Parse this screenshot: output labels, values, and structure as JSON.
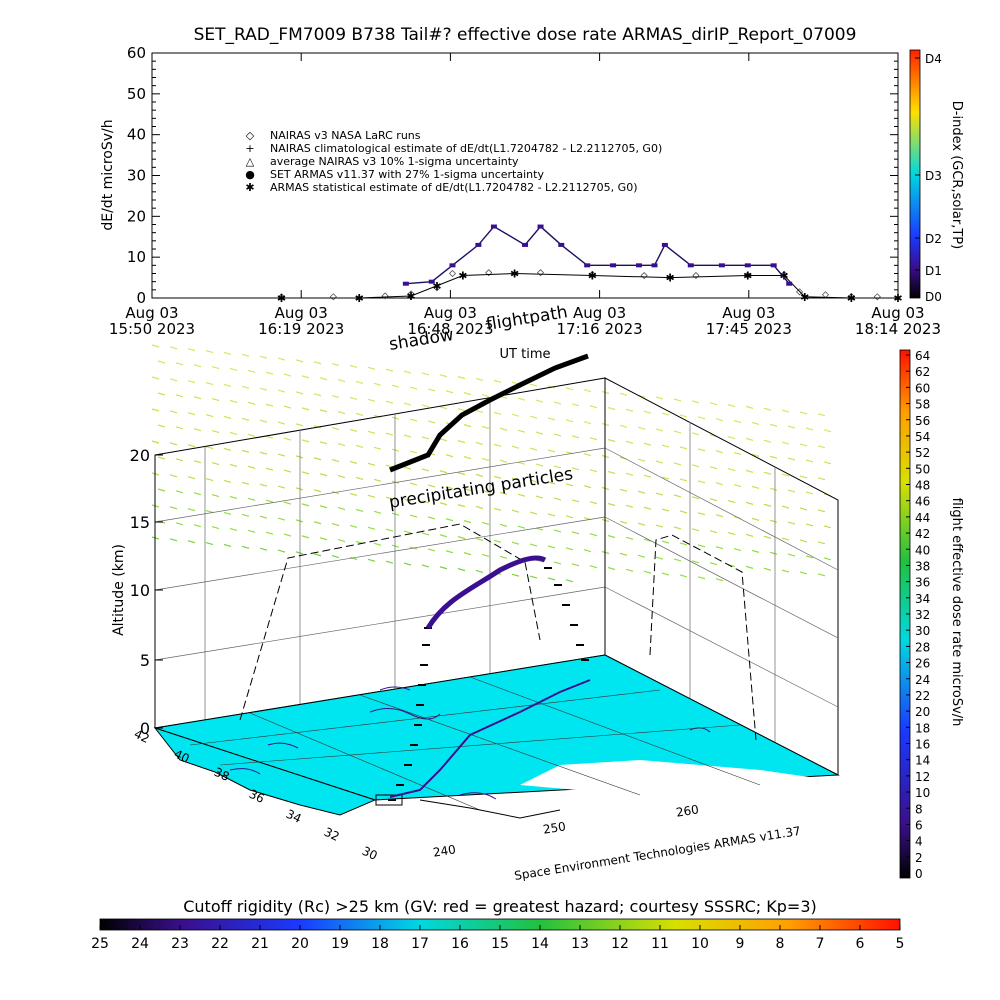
{
  "title": "SET_RAD_FM7009  B738 Tail#? effective dose rate ARMAS_dirIP_Report_07009",
  "top_chart": {
    "ylabel": "dE/dt microSv/h",
    "xlabel": "UT time",
    "yticks": [
      "0",
      "10",
      "20",
      "30",
      "40",
      "50",
      "60"
    ],
    "xticks": [
      {
        "date": "Aug 03",
        "time": "15:50 2023"
      },
      {
        "date": "Aug 03",
        "time": "16:19 2023"
      },
      {
        "date": "Aug 03",
        "time": "16:48 2023"
      },
      {
        "date": "Aug 03",
        "time": "17:16 2023"
      },
      {
        "date": "Aug 03",
        "time": "17:45 2023"
      },
      {
        "date": "Aug 03",
        "time": "18:14 2023"
      }
    ],
    "legend": [
      {
        "symbol": "◇",
        "text": "NAIRAS v3 NASA LaRC runs"
      },
      {
        "symbol": "+",
        "text": "NAIRAS climatological estimate of dE/dt(L1.7204782 - L2.2112705, G0)"
      },
      {
        "symbol": "△",
        "text": "average NAIRAS v3 10% 1-sigma uncertainty"
      },
      {
        "symbol": "●",
        "text": "SET ARMAS v11.37 with 27% 1-sigma uncertainty"
      },
      {
        "symbol": "✱",
        "text": "ARMAS statistical estimate of dE/dt(L1.7204782 - L2.2112705, G0)"
      }
    ],
    "colorbar_label": "D-index (GCR,solar,TP)",
    "colorbar_ticks": [
      "D4",
      "D3",
      "D2",
      "D1",
      "D0"
    ]
  },
  "main_chart": {
    "zlabel": "Altitude (km)",
    "zticks": [
      "0",
      "5",
      "10",
      "15",
      "20"
    ],
    "lat_ticks": [
      "42",
      "40",
      "38",
      "36",
      "34",
      "32",
      "30"
    ],
    "lon_ticks": [
      "240",
      "250",
      "260"
    ],
    "annotation_shadow": "shadow",
    "annotation_flightpath": "flightpath",
    "annotation_particles": "precipitating particles",
    "credit": "Space Environment Technologies ARMAS v11.37",
    "colorbar_label": "flight effective dose rate microSv/h",
    "colorbar_ticks": [
      "64",
      "62",
      "60",
      "58",
      "56",
      "54",
      "52",
      "50",
      "48",
      "46",
      "44",
      "42",
      "40",
      "38",
      "36",
      "34",
      "32",
      "30",
      "28",
      "26",
      "24",
      "22",
      "20",
      "18",
      "16",
      "14",
      "12",
      "10",
      "8",
      "6",
      "4",
      "2",
      "0"
    ]
  },
  "bottom_bar": {
    "label": "Cutoff rigidity (Rc) >25 km (GV: red = greatest hazard; courtesy SSSRC; Kp=3)",
    "ticks": [
      "25",
      "24",
      "23",
      "22",
      "21",
      "20",
      "19",
      "18",
      "17",
      "16",
      "15",
      "14",
      "13",
      "12",
      "11",
      "10",
      "9",
      "8",
      "7",
      "6",
      "5"
    ]
  },
  "colors": {
    "rc_sea": "#00e6f0",
    "rc_land": "#ffffff",
    "armas": "#3a0f90",
    "plane_grid": "#555555"
  },
  "chart_data": {
    "type": "scatter",
    "title": "SET_RAD_FM7009  B738 Tail#? effective dose rate ARMAS_dirIP_Report_07009",
    "xlabel": "UT time",
    "ylabel": "dE/dt microSv/h",
    "ylim": [
      0,
      60
    ],
    "x_range": [
      "15:50",
      "18:14"
    ],
    "series": [
      {
        "name": "NAIRAS v3 NASA LaRC runs",
        "x": [
          "16:15",
          "16:25",
          "16:35",
          "16:40",
          "16:45",
          "16:48",
          "16:55",
          "17:05",
          "17:15",
          "17:25",
          "17:35",
          "17:45",
          "17:52",
          "17:55",
          "18:00",
          "18:05",
          "18:10"
        ],
        "y": [
          0.3,
          0.3,
          0.5,
          1,
          2.5,
          6,
          6.2,
          6.2,
          5.8,
          5.5,
          5.5,
          5.6,
          5.8,
          1.5,
          0.8,
          0.4,
          0.3
        ]
      },
      {
        "name": "SET ARMAS v11.37 with 27% 1-sigma uncertainty",
        "x": [
          "16:39",
          "16:44",
          "16:48",
          "16:53",
          "16:56",
          "17:02",
          "17:05",
          "17:09",
          "17:14",
          "17:19",
          "17:24",
          "17:27",
          "17:29",
          "17:34",
          "17:40",
          "17:45",
          "17:50",
          "17:53"
        ],
        "y": [
          3.5,
          4,
          8,
          13,
          17.5,
          13,
          17.5,
          13,
          8,
          8,
          8,
          8,
          13,
          8,
          8,
          8,
          8,
          3.5
        ]
      },
      {
        "name": "ARMAS statistical estimate of dE/dt(L1.7204782 - L2.2112705, G0)",
        "x": [
          "16:15",
          "16:30",
          "16:40",
          "16:45",
          "16:50",
          "17:00",
          "17:15",
          "17:30",
          "17:45",
          "17:52",
          "17:56",
          "18:05",
          "18:14"
        ],
        "y": [
          0,
          0,
          0.5,
          3,
          5.5,
          6,
          5.5,
          5,
          5.5,
          5.5,
          0.3,
          0,
          0
        ]
      }
    ]
  }
}
